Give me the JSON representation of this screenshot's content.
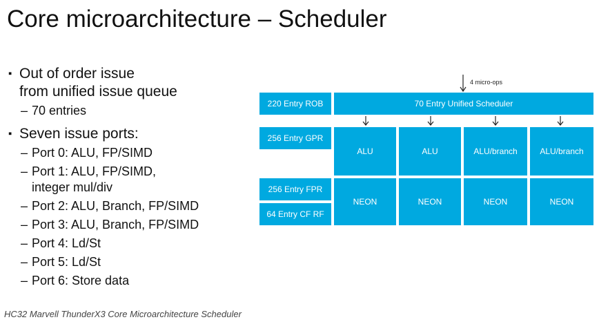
{
  "header": {
    "title": "Core microarchitecture – Scheduler"
  },
  "bullets": [
    {
      "lines": [
        "Out of order issue",
        "from unified issue queue"
      ],
      "sub": [
        [
          "70 entries"
        ]
      ]
    },
    {
      "lines": [
        "Seven issue ports:"
      ],
      "sub": [
        [
          "Port 0: ALU, FP/SIMD"
        ],
        [
          "Port 1: ALU, FP/SIMD,",
          "integer mul/div"
        ],
        [
          "Port 2: ALU, Branch, FP/SIMD"
        ],
        [
          "Port 3: ALU, Branch, FP/SIMD"
        ],
        [
          "Port 4: Ld/St"
        ],
        [
          "Port 5: Ld/St"
        ],
        [
          "Port 6: Store data"
        ]
      ]
    }
  ],
  "diagram": {
    "input_label": "4 micro-ops",
    "rob": "220 Entry ROB",
    "scheduler": "70 Entry Unified Scheduler",
    "gpr": "256 Entry GPR",
    "fpr": "256 Entry FPR",
    "cfrf": "64 Entry CF RF",
    "int_units": [
      "ALU",
      "ALU",
      "ALU/branch",
      "ALU/branch"
    ],
    "neon_units": [
      "NEON",
      "NEON",
      "NEON",
      "NEON"
    ]
  },
  "caption": "HC32 Marvell ThunderX3 Core Microarchitecture Scheduler"
}
